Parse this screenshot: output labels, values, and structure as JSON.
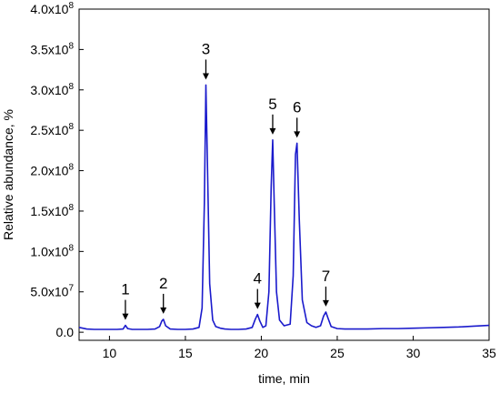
{
  "chart_data": {
    "type": "line",
    "xlabel": "time, min",
    "ylabel": "Relative abundance, %",
    "xlim": [
      8,
      35
    ],
    "ylim": [
      -0.1,
      4.0
    ],
    "x_ticks": [
      10,
      15,
      20,
      25,
      30,
      35
    ],
    "x_tick_labels": [
      "10",
      "15",
      "20",
      "25",
      "30",
      "35"
    ],
    "y_ticks": [
      0.0,
      0.5,
      1.0,
      1.5,
      2.0,
      2.5,
      3.0,
      3.5,
      4.0
    ],
    "y_tick_mantissas": [
      "0.0",
      "5.0x10",
      "1.0x10",
      "1.5x10",
      "2.0x10",
      "2.5x10",
      "3.0x10",
      "3.5x10",
      "4.0x10"
    ],
    "y_tick_exponents": [
      "",
      "7",
      "8",
      "8",
      "8",
      "8",
      "8",
      "8",
      "8"
    ],
    "y_unit_note": "y values in units of 1e8",
    "series": [
      {
        "color": "#1a1acc",
        "x": [
          8.0,
          8.5,
          9.0,
          9.5,
          10.0,
          10.5,
          10.9,
          11.05,
          11.2,
          11.5,
          12.0,
          12.5,
          13.0,
          13.3,
          13.45,
          13.55,
          13.7,
          14.0,
          14.5,
          15.0,
          15.5,
          15.9,
          16.1,
          16.25,
          16.35,
          16.45,
          16.6,
          16.8,
          17.0,
          17.3,
          17.6,
          18.0,
          18.5,
          19.0,
          19.4,
          19.6,
          19.75,
          19.9,
          20.1,
          20.3,
          20.5,
          20.65,
          20.75,
          20.85,
          21.0,
          21.2,
          21.5,
          21.9,
          22.1,
          22.25,
          22.35,
          22.5,
          22.7,
          23.0,
          23.3,
          23.6,
          23.9,
          24.1,
          24.25,
          24.4,
          24.6,
          25.0,
          25.5,
          26.0,
          27.0,
          28.0,
          29.0,
          30.0,
          31.0,
          32.0,
          33.0,
          34.0,
          35.0
        ],
        "y": [
          0.06,
          0.04,
          0.035,
          0.035,
          0.035,
          0.035,
          0.04,
          0.085,
          0.045,
          0.035,
          0.035,
          0.035,
          0.04,
          0.07,
          0.14,
          0.16,
          0.08,
          0.04,
          0.035,
          0.035,
          0.04,
          0.06,
          0.3,
          1.6,
          3.06,
          2.1,
          0.6,
          0.15,
          0.07,
          0.05,
          0.04,
          0.035,
          0.035,
          0.04,
          0.06,
          0.16,
          0.22,
          0.14,
          0.06,
          0.08,
          0.5,
          1.8,
          2.38,
          1.6,
          0.5,
          0.15,
          0.08,
          0.1,
          0.7,
          2.2,
          2.34,
          1.4,
          0.4,
          0.12,
          0.08,
          0.06,
          0.08,
          0.2,
          0.25,
          0.17,
          0.07,
          0.045,
          0.04,
          0.04,
          0.04,
          0.045,
          0.045,
          0.05,
          0.055,
          0.06,
          0.065,
          0.075,
          0.085
        ]
      }
    ],
    "annotations": [
      {
        "label": "1",
        "x": 11.05,
        "y": 0.085
      },
      {
        "label": "2",
        "x": 13.55,
        "y": 0.16
      },
      {
        "label": "3",
        "x": 16.35,
        "y": 3.06
      },
      {
        "label": "4",
        "x": 19.75,
        "y": 0.22
      },
      {
        "label": "5",
        "x": 20.75,
        "y": 2.38
      },
      {
        "label": "6",
        "x": 22.35,
        "y": 2.34
      },
      {
        "label": "7",
        "x": 24.25,
        "y": 0.25
      }
    ],
    "grid": false,
    "legend": "none"
  }
}
